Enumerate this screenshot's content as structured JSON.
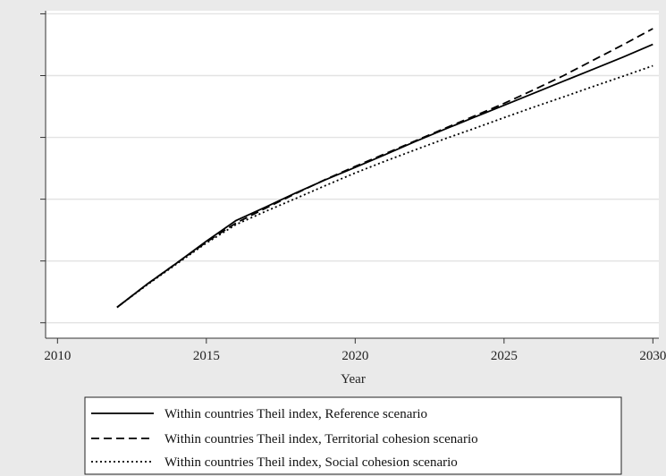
{
  "chart_data": {
    "type": "line",
    "title": "",
    "xlabel": "Year",
    "ylabel": "",
    "xlim": [
      2009.6,
      2030.2
    ],
    "ylim": [
      0,
      1.06
    ],
    "xticks": [
      2010,
      2015,
      2020,
      2025,
      2030
    ],
    "xtick_labels": [
      "2010",
      "2015",
      "2020",
      "2025",
      "2030"
    ],
    "yticks": [
      0.05,
      0.25,
      0.45,
      0.65,
      0.85,
      1.05
    ],
    "ytick_labels": [
      "",
      "",
      "",
      "",
      "",
      ""
    ],
    "grid": true,
    "legend": "bottom",
    "series": [
      {
        "name": "Within countries Theil index, Reference scenario",
        "style": "solid",
        "x": [
          2012,
          2013,
          2014,
          2015,
          2016,
          2017,
          2018,
          2019,
          2020,
          2021,
          2022,
          2023,
          2024,
          2025,
          2026,
          2027,
          2028,
          2029,
          2030
        ],
        "y": [
          0.1,
          0.174,
          0.243,
          0.314,
          0.381,
          0.425,
          0.47,
          0.513,
          0.553,
          0.594,
          0.636,
          0.676,
          0.715,
          0.754,
          0.793,
          0.832,
          0.871,
          0.91,
          0.951
        ]
      },
      {
        "name": "Within countries Theil index, Territorial cohesion scenario",
        "style": "dashed",
        "x": [
          2012,
          2013,
          2014,
          2015,
          2016,
          2017,
          2018,
          2019,
          2020,
          2021,
          2022,
          2023,
          2024,
          2025,
          2026,
          2027,
          2028,
          2029,
          2030
        ],
        "y": [
          0.1,
          0.174,
          0.243,
          0.311,
          0.373,
          0.421,
          0.468,
          0.514,
          0.556,
          0.597,
          0.638,
          0.679,
          0.719,
          0.76,
          0.804,
          0.85,
          0.9,
          0.95,
          1.002
        ]
      },
      {
        "name": "Within countries Theil index, Social cohesion scenario",
        "style": "dotted",
        "x": [
          2012,
          2013,
          2014,
          2015,
          2016,
          2017,
          2018,
          2019,
          2020,
          2021,
          2022,
          2023,
          2024,
          2025,
          2026,
          2027,
          2028,
          2029,
          2030
        ],
        "y": [
          0.1,
          0.172,
          0.24,
          0.308,
          0.368,
          0.411,
          0.452,
          0.494,
          0.535,
          0.573,
          0.609,
          0.645,
          0.679,
          0.714,
          0.748,
          0.781,
          0.815,
          0.848,
          0.882
        ]
      }
    ]
  }
}
